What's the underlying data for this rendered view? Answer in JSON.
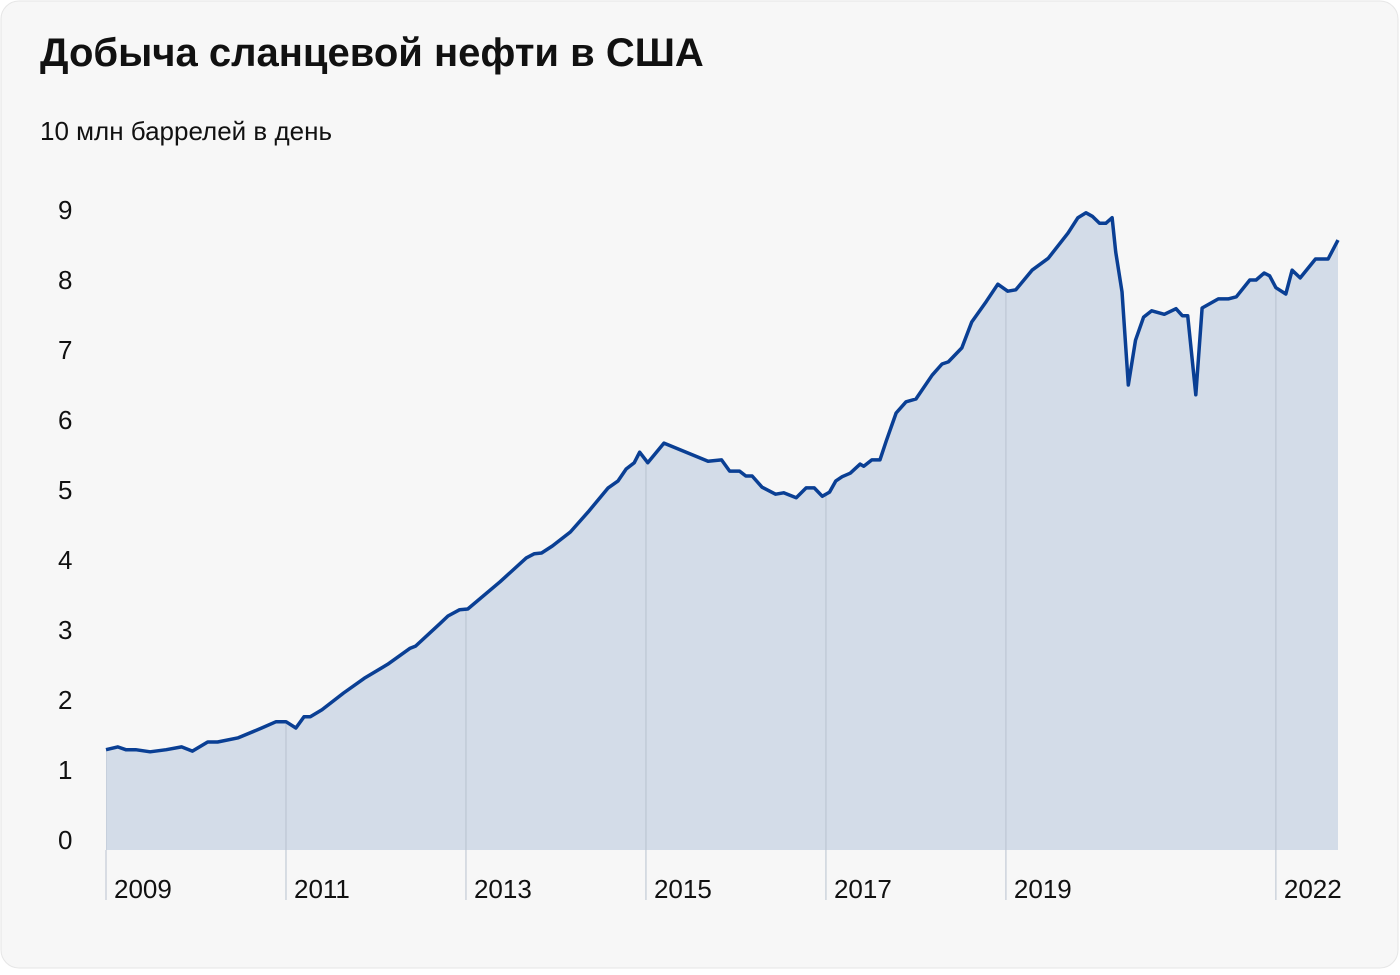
{
  "chart_data": {
    "type": "area",
    "title": "Добыча сланцевой нефти в США",
    "subtitle": "10 млн баррелей в день",
    "x": [
      2009.0,
      2009.13,
      2009.22,
      2009.33,
      2009.49,
      2009.67,
      2009.84,
      2009.96,
      2010.13,
      2010.24,
      2010.47,
      2010.73,
      2010.89,
      2011.0,
      2011.11,
      2011.2,
      2011.27,
      2011.4,
      2011.64,
      2011.87,
      2012.13,
      2012.38,
      2012.44,
      2012.71,
      2012.8,
      2012.93,
      2013.02,
      2013.38,
      2013.67,
      2013.76,
      2013.84,
      2013.96,
      2014.16,
      2014.36,
      2014.58,
      2014.69,
      2014.78,
      2014.87,
      2014.93,
      2015.02,
      2015.2,
      2015.69,
      2015.84,
      2015.93,
      2016.04,
      2016.11,
      2016.18,
      2016.29,
      2016.44,
      2016.53,
      2016.67,
      2016.78,
      2016.87,
      2016.96,
      2017.04,
      2017.11,
      2017.18,
      2017.27,
      2017.38,
      2017.42,
      2017.51,
      2017.6,
      2017.67,
      2017.78,
      2017.89,
      2018.0,
      2018.18,
      2018.29,
      2018.36,
      2018.51,
      2018.62,
      2018.78,
      2018.91,
      2019.02,
      2019.11,
      2019.29,
      2019.47,
      2019.69,
      2019.8,
      2019.89,
      2019.96,
      2020.04,
      2020.11,
      2020.18,
      2020.22,
      2020.29,
      2020.36,
      2020.44,
      2020.53,
      2020.62,
      2020.76,
      2020.89,
      2020.96,
      2021.02,
      2021.11,
      2021.18,
      2021.36,
      2021.47,
      2021.56,
      2021.71,
      2021.78,
      2021.87,
      2021.93,
      2022.0,
      2022.11,
      2022.18,
      2022.27,
      2022.44,
      2022.58,
      2022.69
    ],
    "series": [
      {
        "color": "#0a3f94",
        "fill": "#d3dce8",
        "values": [
          1.29,
          1.33,
          1.29,
          1.29,
          1.26,
          1.29,
          1.33,
          1.27,
          1.4,
          1.4,
          1.46,
          1.6,
          1.69,
          1.69,
          1.6,
          1.76,
          1.76,
          1.86,
          2.1,
          2.31,
          2.51,
          2.74,
          2.77,
          3.09,
          3.2,
          3.29,
          3.3,
          3.69,
          4.03,
          4.09,
          4.1,
          4.2,
          4.4,
          4.69,
          5.03,
          5.13,
          5.3,
          5.39,
          5.54,
          5.39,
          5.67,
          5.41,
          5.43,
          5.27,
          5.27,
          5.2,
          5.2,
          5.04,
          4.94,
          4.96,
          4.89,
          5.03,
          5.03,
          4.91,
          4.97,
          5.13,
          5.19,
          5.24,
          5.37,
          5.34,
          5.43,
          5.43,
          5.7,
          6.1,
          6.26,
          6.3,
          6.64,
          6.8,
          6.83,
          7.03,
          7.4,
          7.69,
          7.94,
          7.84,
          7.86,
          8.14,
          8.31,
          8.67,
          8.89,
          8.96,
          8.91,
          8.81,
          8.81,
          8.89,
          8.4,
          7.83,
          6.5,
          7.14,
          7.47,
          7.56,
          7.51,
          7.59,
          7.49,
          7.49,
          6.36,
          7.6,
          7.73,
          7.73,
          7.76,
          8.0,
          8.0,
          8.1,
          8.06,
          7.89,
          7.8,
          8.14,
          8.03,
          8.3,
          8.3,
          8.57
        ]
      }
    ],
    "xlim": [
      2009,
      2022.69
    ],
    "xticks": [
      2009,
      2011,
      2013,
      2015,
      2017,
      2019,
      2022
    ],
    "ylim": [
      0,
      9
    ],
    "yticks": [
      0,
      1,
      2,
      3,
      4,
      5,
      6,
      7,
      8,
      9
    ]
  }
}
